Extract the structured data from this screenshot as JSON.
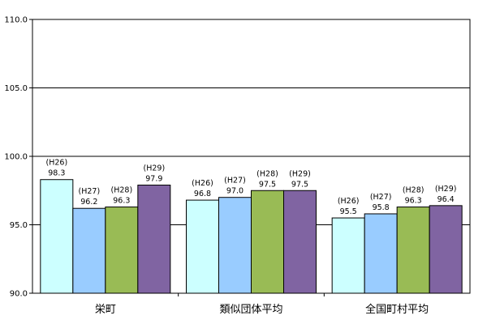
{
  "chart_data": {
    "type": "bar",
    "categories": [
      "栄町",
      "類似団体平均",
      "全国町村平均"
    ],
    "series": [
      {
        "name": "(H26)",
        "values": [
          98.3,
          96.8,
          95.5
        ],
        "color": "#ccffff"
      },
      {
        "name": "(H27)",
        "values": [
          96.2,
          97.0,
          95.8
        ],
        "color": "#99ccff"
      },
      {
        "name": "(H28)",
        "values": [
          96.3,
          97.5,
          96.3
        ],
        "color": "#99bb55"
      },
      {
        "name": "(H29)",
        "values": [
          97.9,
          97.5,
          96.4
        ],
        "color": "#8064a2"
      }
    ],
    "value_labels": [
      [
        "98.3",
        "96.8",
        "95.5"
      ],
      [
        "96.2",
        "97.0",
        "95.8"
      ],
      [
        "96.3",
        "97.5",
        "96.3"
      ],
      [
        "97.9",
        "97.5",
        "96.4"
      ]
    ],
    "yticks": [
      "90.0",
      "95.0",
      "100.0",
      "105.0",
      "110.0"
    ],
    "ylim": [
      90,
      110
    ],
    "grid": true,
    "legend": "none"
  }
}
